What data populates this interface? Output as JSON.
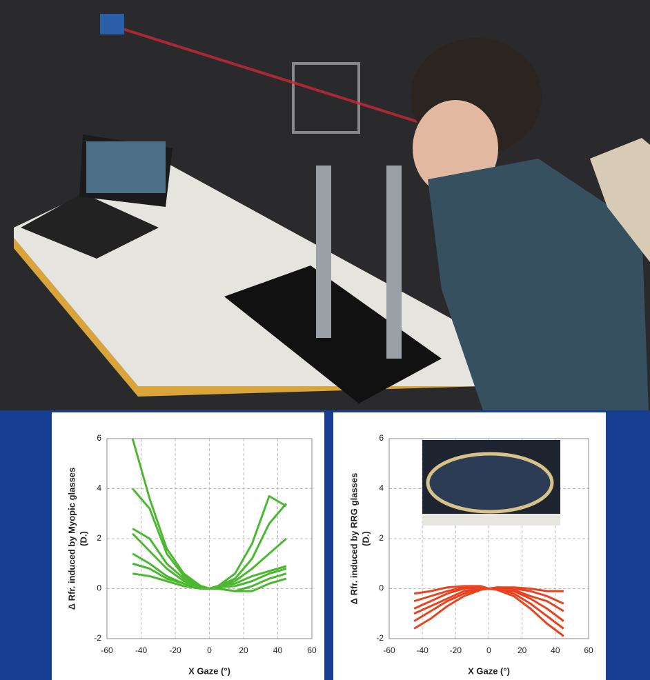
{
  "chart_data": [
    {
      "type": "line",
      "ylabel": [
        "Δ Rfr. induced by Myopic glasses",
        "(D.)"
      ],
      "xlabel": "X Gaze (°)",
      "xlim": [
        -60,
        60
      ],
      "xticks": [
        -60,
        -40,
        -20,
        0,
        20,
        40,
        60
      ],
      "ylim": [
        -2,
        6
      ],
      "yticks": [
        -2,
        0,
        2,
        4,
        6
      ],
      "grid": true,
      "x": [
        -45,
        -35,
        -25,
        -15,
        -5,
        0,
        5,
        15,
        25,
        35,
        45
      ],
      "series": [
        {
          "color": "#4cb832",
          "values": [
            6.0,
            3.6,
            1.6,
            0.6,
            0.1,
            0,
            0.1,
            0.6,
            1.8,
            3.7,
            3.3
          ]
        },
        {
          "color": "#4cb832",
          "values": [
            4.0,
            3.2,
            1.4,
            0.5,
            0.1,
            0,
            0.1,
            0.4,
            1.2,
            2.6,
            3.4
          ]
        },
        {
          "color": "#4cb832",
          "values": [
            2.4,
            2.0,
            1.0,
            0.4,
            0.1,
            0,
            0.1,
            0.3,
            0.8,
            1.4,
            2.0
          ]
        },
        {
          "color": "#4cb832",
          "values": [
            2.2,
            1.5,
            0.8,
            0.3,
            0.1,
            0,
            0.1,
            0.2,
            0.5,
            0.7,
            0.9
          ]
        },
        {
          "color": "#4cb832",
          "values": [
            1.4,
            1.0,
            0.5,
            0.2,
            0.05,
            0,
            0.05,
            0.1,
            0.3,
            0.6,
            0.8
          ]
        },
        {
          "color": "#4cb832",
          "values": [
            1.0,
            0.8,
            0.4,
            0.2,
            0,
            0,
            0,
            -0.1,
            0.1,
            0.4,
            0.6
          ]
        },
        {
          "color": "#4cb832",
          "values": [
            0.6,
            0.5,
            0.3,
            0.1,
            0,
            0,
            0,
            -0.1,
            -0.1,
            0.2,
            0.4
          ]
        }
      ]
    },
    {
      "type": "line",
      "ylabel": [
        "Δ Rfr. induced by RRG glasses",
        "(D.)"
      ],
      "xlabel": "X Gaze (°)",
      "xlim": [
        -60,
        60
      ],
      "xticks": [
        -60,
        -40,
        -20,
        0,
        20,
        40,
        60
      ],
      "ylim": [
        -2,
        6
      ],
      "yticks": [
        -2,
        0,
        2,
        4,
        6
      ],
      "grid": true,
      "x": [
        -45,
        -35,
        -25,
        -15,
        -5,
        0,
        5,
        15,
        25,
        35,
        45
      ],
      "series": [
        {
          "color": "#e8431e",
          "values": [
            -0.2,
            -0.1,
            0.05,
            0.1,
            0.1,
            0,
            0.05,
            0.05,
            0,
            -0.1,
            -0.1
          ]
        },
        {
          "color": "#e8431e",
          "values": [
            -0.5,
            -0.3,
            -0.1,
            0.05,
            0.1,
            0,
            0.05,
            0,
            -0.1,
            -0.3,
            -0.6
          ]
        },
        {
          "color": "#e8431e",
          "values": [
            -0.8,
            -0.5,
            -0.2,
            0,
            0.05,
            0,
            0,
            -0.05,
            -0.3,
            -0.5,
            -0.9
          ]
        },
        {
          "color": "#e8431e",
          "values": [
            -1.0,
            -0.7,
            -0.4,
            -0.1,
            0,
            0,
            0,
            -0.1,
            -0.4,
            -0.8,
            -1.3
          ]
        },
        {
          "color": "#e8431e",
          "values": [
            -1.3,
            -0.9,
            -0.5,
            -0.2,
            0,
            0,
            0,
            -0.2,
            -0.6,
            -1.1,
            -1.6
          ]
        },
        {
          "color": "#e8431e",
          "values": [
            -1.6,
            -1.2,
            -0.7,
            -0.3,
            -0.05,
            0,
            -0.05,
            -0.3,
            -0.8,
            -1.4,
            -1.9
          ]
        }
      ]
    }
  ]
}
